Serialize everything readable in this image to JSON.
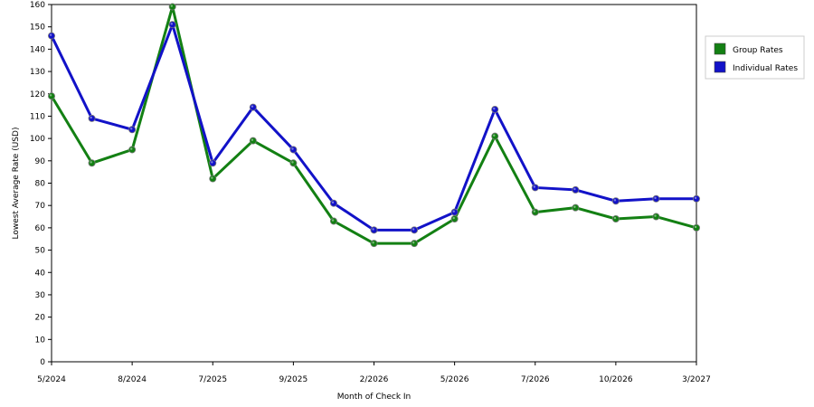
{
  "chart_data": {
    "type": "line",
    "xlabel": "Month of Check In",
    "ylabel": "Lowest Average Rate (USD)",
    "ylim": [
      0,
      160
    ],
    "ytick_step": 10,
    "grid": "horizontal dashed",
    "legend_position": "right",
    "categories": [
      "5/2024",
      "",
      "8/2024",
      "",
      "7/2025",
      "",
      "9/2025",
      "",
      "2/2026",
      "",
      "5/2026",
      "",
      "7/2026",
      "",
      "10/2026",
      "",
      "3/2027"
    ],
    "series": [
      {
        "name": "Group Rates",
        "color": "#138013",
        "values": [
          119,
          89,
          95,
          159,
          82,
          99,
          89,
          63,
          53,
          53,
          64,
          101,
          67,
          69,
          64,
          65,
          60
        ]
      },
      {
        "name": "Individual Rates",
        "color": "#1212c8",
        "values": [
          146,
          109,
          104,
          151,
          89,
          114,
          95,
          71,
          59,
          59,
          67,
          113,
          78,
          77,
          72,
          73,
          73
        ]
      }
    ]
  }
}
